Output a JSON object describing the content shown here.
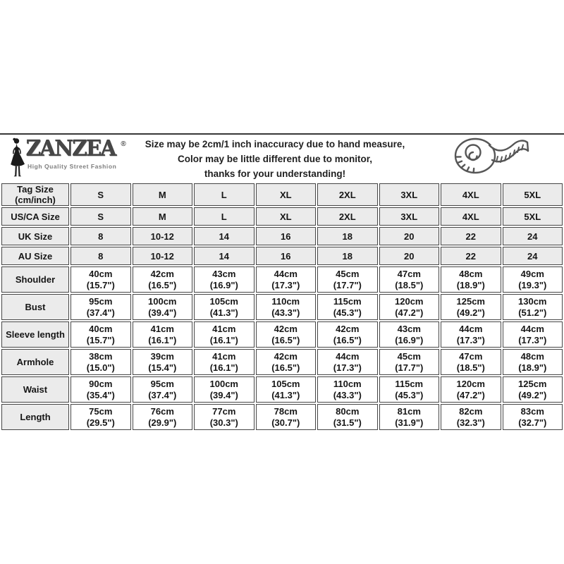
{
  "brand": {
    "name": "ZANZEA",
    "registered": "®",
    "tagline": "High Quality Street Fashion"
  },
  "notice": {
    "lines": [
      "Size may be 2cm/1 inch inaccuracy due to hand measure,",
      "Color may be little different due to monitor,",
      "thanks for your understanding!"
    ]
  },
  "icons": {
    "logo_figure": "woman-silhouette-icon",
    "header_right": "measuring-tape-icon"
  },
  "colors": {
    "cell_gray": "#ebebeb",
    "border": "#454545",
    "text": "#161616",
    "divider": "#383838",
    "tagline_gray": "#7d7d7d"
  },
  "size_chart": {
    "corner_header": [
      "Tag Size",
      "(cm/inch)"
    ],
    "columns": [
      "S",
      "M",
      "L",
      "XL",
      "2XL",
      "3XL",
      "4XL",
      "5XL"
    ],
    "size_rows": [
      {
        "label": "US/CA Size",
        "values": [
          "S",
          "M",
          "L",
          "XL",
          "2XL",
          "3XL",
          "4XL",
          "5XL"
        ]
      },
      {
        "label": "UK Size",
        "values": [
          "8",
          "10-12",
          "14",
          "16",
          "18",
          "20",
          "22",
          "24"
        ]
      },
      {
        "label": "AU Size",
        "values": [
          "8",
          "10-12",
          "14",
          "16",
          "18",
          "20",
          "22",
          "24"
        ]
      }
    ],
    "measure_rows": [
      {
        "label": "Shoulder",
        "cm": [
          "40cm",
          "42cm",
          "43cm",
          "44cm",
          "45cm",
          "47cm",
          "48cm",
          "49cm"
        ],
        "inch": [
          "(15.7\")",
          "(16.5\")",
          "(16.9\")",
          "(17.3\")",
          "(17.7\")",
          "(18.5\")",
          "(18.9\")",
          "(19.3\")"
        ]
      },
      {
        "label": "Bust",
        "cm": [
          "95cm",
          "100cm",
          "105cm",
          "110cm",
          "115cm",
          "120cm",
          "125cm",
          "130cm"
        ],
        "inch": [
          "(37.4\")",
          "(39.4\")",
          "(41.3\")",
          "(43.3\")",
          "(45.3\")",
          "(47.2\")",
          "(49.2\")",
          "(51.2\")"
        ]
      },
      {
        "label": "Sleeve length",
        "cm": [
          "40cm",
          "41cm",
          "41cm",
          "42cm",
          "42cm",
          "43cm",
          "44cm",
          "44cm"
        ],
        "inch": [
          "(15.7\")",
          "(16.1\")",
          "(16.1\")",
          "(16.5\")",
          "(16.5\")",
          "(16.9\")",
          "(17.3\")",
          "(17.3\")"
        ]
      },
      {
        "label": "Armhole",
        "cm": [
          "38cm",
          "39cm",
          "41cm",
          "42cm",
          "44cm",
          "45cm",
          "47cm",
          "48cm"
        ],
        "inch": [
          "(15.0\")",
          "(15.4\")",
          "(16.1\")",
          "(16.5\")",
          "(17.3\")",
          "(17.7\")",
          "(18.5\")",
          "(18.9\")"
        ]
      },
      {
        "label": "Waist",
        "cm": [
          "90cm",
          "95cm",
          "100cm",
          "105cm",
          "110cm",
          "115cm",
          "120cm",
          "125cm"
        ],
        "inch": [
          "(35.4\")",
          "(37.4\")",
          "(39.4\")",
          "(41.3\")",
          "(43.3\")",
          "(45.3\")",
          "(47.2\")",
          "(49.2\")"
        ]
      },
      {
        "label": "Length",
        "cm": [
          "75cm",
          "76cm",
          "77cm",
          "78cm",
          "80cm",
          "81cm",
          "82cm",
          "83cm"
        ],
        "inch": [
          "(29.5\")",
          "(29.9\")",
          "(30.3\")",
          "(30.7\")",
          "(31.5\")",
          "(31.9\")",
          "(32.3\")",
          "(32.7\")"
        ]
      }
    ]
  }
}
